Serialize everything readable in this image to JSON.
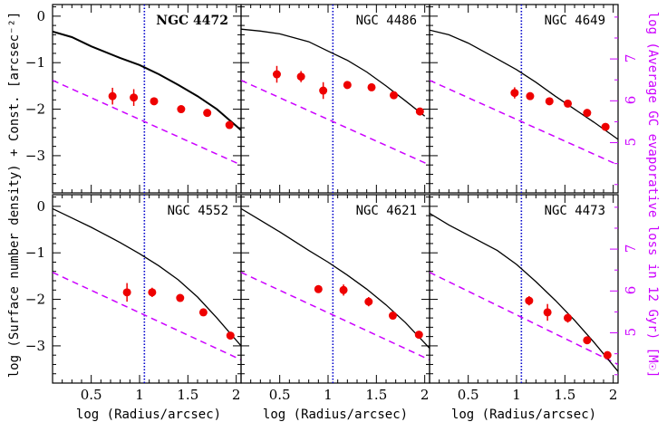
{
  "chart_data": {
    "type": "scatter",
    "layout": "2x3 panels, shared axes",
    "xlabel": "log (Radius/arcsec)",
    "ylabel": "log (Surface number density) + Const. [arcsec⁻²]",
    "ylabel_right": "log (Average GC evaporative loss in 12 Gyr) [M☉]",
    "xlim": [
      0.1,
      2.05
    ],
    "ylim": [
      -3.8,
      0.25
    ],
    "x_ticks": [
      0.5,
      1,
      1.5,
      2
    ],
    "x_tick_labels": [
      "0.5",
      "1",
      "1.5",
      "2"
    ],
    "y_ticks": [
      0,
      -1,
      -2,
      -3
    ],
    "y_tick_labels": [
      "0",
      "−1",
      "−2",
      "−3"
    ],
    "right_ticks": [
      7,
      6,
      5
    ],
    "right_tick_labels": [
      "7",
      "6",
      "5"
    ],
    "right_ylim": [
      3.8,
      8.3
    ],
    "vertical_line_x": 1.05,
    "colors": {
      "points": "#ee0000",
      "model_line": "#000000",
      "dashed_line": "#cc00ff",
      "vertical_line": "#0000cc"
    },
    "panels": [
      {
        "name": "NGC 4472",
        "bold": true,
        "points": [
          {
            "x": 0.72,
            "y": -1.72,
            "err": 0.18
          },
          {
            "x": 0.94,
            "y": -1.75,
            "err": 0.18
          },
          {
            "x": 1.15,
            "y": -1.83,
            "err": 0.05
          },
          {
            "x": 1.43,
            "y": -2.0,
            "err": 0.05
          },
          {
            "x": 1.7,
            "y": -2.08,
            "err": 0.05
          },
          {
            "x": 1.93,
            "y": -2.34,
            "err": 0.05
          }
        ],
        "model_line": [
          [
            0.1,
            -0.33
          ],
          [
            0.3,
            -0.45
          ],
          [
            0.5,
            -0.65
          ],
          [
            0.8,
            -0.9
          ],
          [
            1.0,
            -1.05
          ],
          [
            1.2,
            -1.25
          ],
          [
            1.4,
            -1.48
          ],
          [
            1.6,
            -1.72
          ],
          [
            1.8,
            -2.0
          ],
          [
            2.05,
            -2.45
          ]
        ],
        "dashed_line": [
          [
            0.1,
            -1.38
          ],
          [
            2.05,
            -3.2
          ]
        ]
      },
      {
        "name": "NGC 4486",
        "bold": false,
        "points": [
          {
            "x": 0.47,
            "y": -1.25,
            "err": 0.18
          },
          {
            "x": 0.72,
            "y": -1.3,
            "err": 0.12
          },
          {
            "x": 0.95,
            "y": -1.6,
            "err": 0.18
          },
          {
            "x": 1.2,
            "y": -1.48,
            "err": 0.05
          },
          {
            "x": 1.45,
            "y": -1.53,
            "err": 0.05
          },
          {
            "x": 1.68,
            "y": -1.7,
            "err": 0.05
          },
          {
            "x": 1.95,
            "y": -2.05,
            "err": 0.05
          }
        ],
        "model_line": [
          [
            0.1,
            -0.28
          ],
          [
            0.3,
            -0.32
          ],
          [
            0.5,
            -0.38
          ],
          [
            0.8,
            -0.55
          ],
          [
            1.0,
            -0.75
          ],
          [
            1.2,
            -0.95
          ],
          [
            1.4,
            -1.2
          ],
          [
            1.6,
            -1.5
          ],
          [
            1.8,
            -1.82
          ],
          [
            2.0,
            -2.15
          ]
        ],
        "dashed_line": [
          [
            0.1,
            -1.38
          ],
          [
            2.05,
            -3.2
          ]
        ]
      },
      {
        "name": "NGC 4649",
        "bold": false,
        "points": [
          {
            "x": 0.98,
            "y": -1.65,
            "err": 0.12
          },
          {
            "x": 1.14,
            "y": -1.72,
            "err": 0.05
          },
          {
            "x": 1.34,
            "y": -1.83,
            "err": 0.05
          },
          {
            "x": 1.53,
            "y": -1.88,
            "err": 0.05
          },
          {
            "x": 1.73,
            "y": -2.08,
            "err": 0.05
          },
          {
            "x": 1.92,
            "y": -2.38,
            "err": 0.05
          }
        ],
        "model_line": [
          [
            0.1,
            -0.3
          ],
          [
            0.3,
            -0.4
          ],
          [
            0.5,
            -0.58
          ],
          [
            0.8,
            -0.92
          ],
          [
            1.0,
            -1.15
          ],
          [
            1.2,
            -1.42
          ],
          [
            1.4,
            -1.72
          ],
          [
            1.6,
            -2.0
          ],
          [
            1.8,
            -2.28
          ],
          [
            2.05,
            -2.65
          ]
        ],
        "dashed_line": [
          [
            0.1,
            -1.38
          ],
          [
            2.05,
            -3.2
          ]
        ]
      },
      {
        "name": "NGC 4552",
        "bold": false,
        "points": [
          {
            "x": 0.87,
            "y": -1.85,
            "err": 0.2
          },
          {
            "x": 1.13,
            "y": -1.85,
            "err": 0.1
          },
          {
            "x": 1.42,
            "y": -1.97,
            "err": 0.05
          },
          {
            "x": 1.66,
            "y": -2.28,
            "err": 0.05
          },
          {
            "x": 1.94,
            "y": -2.78,
            "err": 0.05
          }
        ],
        "model_line": [
          [
            0.1,
            -0.05
          ],
          [
            0.3,
            -0.25
          ],
          [
            0.5,
            -0.45
          ],
          [
            0.8,
            -0.78
          ],
          [
            1.0,
            -1.02
          ],
          [
            1.2,
            -1.28
          ],
          [
            1.4,
            -1.58
          ],
          [
            1.6,
            -1.95
          ],
          [
            1.8,
            -2.4
          ],
          [
            2.05,
            -3.0
          ]
        ],
        "dashed_line": [
          [
            0.1,
            -1.42
          ],
          [
            2.05,
            -3.3
          ]
        ]
      },
      {
        "name": "NGC 4621",
        "bold": false,
        "points": [
          {
            "x": 0.9,
            "y": -1.78,
            "err": 0.05
          },
          {
            "x": 1.16,
            "y": -1.8,
            "err": 0.12
          },
          {
            "x": 1.42,
            "y": -2.05,
            "err": 0.1
          },
          {
            "x": 1.67,
            "y": -2.35,
            "err": 0.05
          },
          {
            "x": 1.94,
            "y": -2.76,
            "err": 0.05
          }
        ],
        "model_line": [
          [
            0.1,
            -0.05
          ],
          [
            0.3,
            -0.3
          ],
          [
            0.5,
            -0.55
          ],
          [
            0.8,
            -0.95
          ],
          [
            1.0,
            -1.2
          ],
          [
            1.2,
            -1.48
          ],
          [
            1.4,
            -1.78
          ],
          [
            1.6,
            -2.12
          ],
          [
            1.8,
            -2.5
          ],
          [
            2.05,
            -3.05
          ]
        ],
        "dashed_line": [
          [
            0.1,
            -1.42
          ],
          [
            2.05,
            -3.3
          ]
        ]
      },
      {
        "name": "NGC 4473",
        "bold": false,
        "points": [
          {
            "x": 1.13,
            "y": -2.03,
            "err": 0.1
          },
          {
            "x": 1.32,
            "y": -2.28,
            "err": 0.18
          },
          {
            "x": 1.53,
            "y": -2.4,
            "err": 0.1
          },
          {
            "x": 1.73,
            "y": -2.88,
            "err": 0.05
          },
          {
            "x": 1.94,
            "y": -3.2,
            "err": 0.05
          }
        ],
        "model_line": [
          [
            0.1,
            -0.15
          ],
          [
            0.3,
            -0.4
          ],
          [
            0.5,
            -0.62
          ],
          [
            0.8,
            -0.95
          ],
          [
            1.0,
            -1.25
          ],
          [
            1.2,
            -1.62
          ],
          [
            1.4,
            -2.02
          ],
          [
            1.6,
            -2.45
          ],
          [
            1.8,
            -2.92
          ],
          [
            2.05,
            -3.55
          ]
        ],
        "dashed_line": [
          [
            0.1,
            -1.42
          ],
          [
            2.05,
            -3.4
          ]
        ]
      }
    ]
  }
}
